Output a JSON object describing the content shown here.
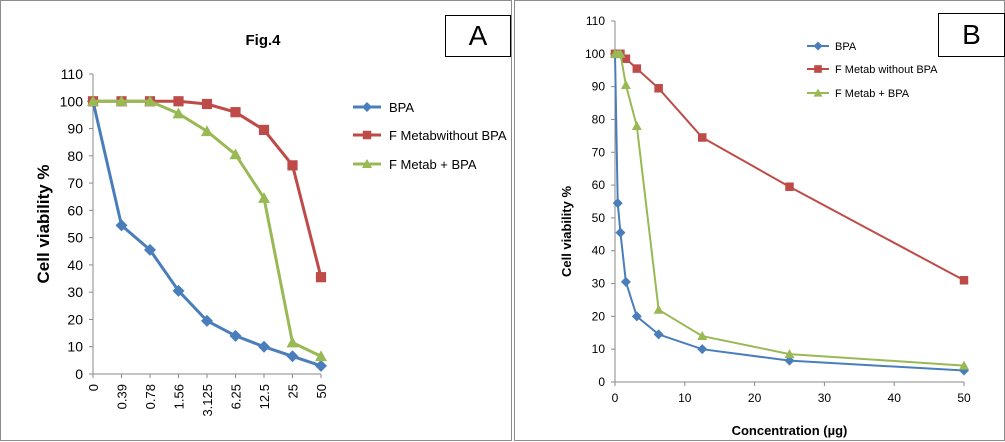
{
  "figure_label": "Fig.4",
  "panel_labels": {
    "a": "A",
    "b": "B"
  },
  "colors": {
    "bpa": "#4a7ebb",
    "f_metab": "#be4b48",
    "f_metab_bpa": "#98b954"
  },
  "chart_data": [
    {
      "type": "line",
      "title": "Fig.4",
      "xlabel": "",
      "ylabel": "Cell viability %",
      "categories": [
        "0",
        "0.39",
        "0.78",
        "1.56",
        "3.125",
        "6.25",
        "12.5",
        "25",
        "50"
      ],
      "ylim": [
        0,
        110
      ],
      "yticks": [
        0,
        10,
        20,
        30,
        40,
        50,
        60,
        70,
        80,
        90,
        100,
        110
      ],
      "grid": false,
      "legend": "right",
      "series": [
        {
          "name": "BPA",
          "marker": "diamond",
          "values": [
            100,
            54.5,
            45.5,
            30.5,
            19.5,
            14,
            10,
            6.5,
            3
          ]
        },
        {
          "name": "F Metabwithout BPA",
          "marker": "square",
          "values": [
            100,
            100,
            100,
            100,
            99,
            96,
            89.5,
            76.5,
            35.5
          ]
        },
        {
          "name": "F Metab + BPA",
          "marker": "triangle",
          "values": [
            100,
            100,
            100,
            95.5,
            89,
            80.5,
            64.5,
            11.5,
            6.5
          ]
        }
      ]
    },
    {
      "type": "scatter",
      "title": "",
      "xlabel": "Concentration (µg)",
      "ylabel": "Cell viability %",
      "xlim": [
        0,
        50
      ],
      "xticks": [
        0,
        10,
        20,
        30,
        40,
        50
      ],
      "ylim": [
        0,
        110
      ],
      "yticks": [
        0,
        10,
        20,
        30,
        40,
        50,
        60,
        70,
        80,
        90,
        100,
        110
      ],
      "grid": false,
      "legend": "top-right",
      "series": [
        {
          "name": "BPA",
          "marker": "diamond",
          "x": [
            0,
            0.39,
            0.78,
            1.56,
            3.125,
            6.25,
            12.5,
            25,
            50
          ],
          "y": [
            100,
            54.5,
            45.5,
            30.5,
            20,
            14.5,
            10,
            6.5,
            3.5
          ]
        },
        {
          "name": "F Metab without BPA",
          "marker": "square",
          "x": [
            0,
            0.39,
            0.78,
            1.56,
            3.125,
            6.25,
            12.5,
            25,
            50
          ],
          "y": [
            100,
            100,
            100,
            98.5,
            95.5,
            89.5,
            74.5,
            59.5,
            31
          ]
        },
        {
          "name": "F Metab + BPA",
          "marker": "triangle",
          "x": [
            0,
            0.39,
            0.78,
            1.56,
            3.125,
            6.25,
            12.5,
            25,
            50
          ],
          "y": [
            100,
            100,
            100,
            90.5,
            78,
            22,
            14,
            8.5,
            5
          ]
        }
      ]
    }
  ]
}
